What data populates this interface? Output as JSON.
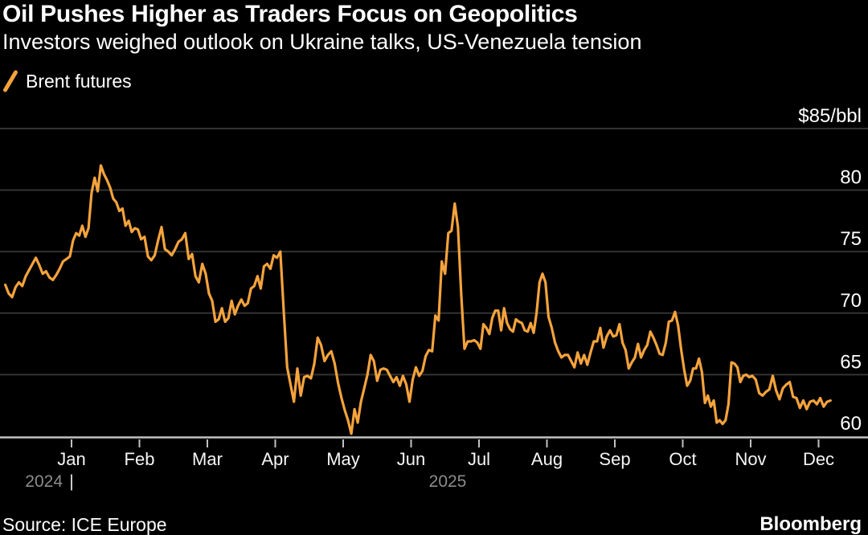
{
  "header": {
    "title": "Oil Pushes Higher as Traders Focus on Geopolitics",
    "subtitle": "Investors weighed outlook on Ukraine talks, US-Venezuela tension"
  },
  "legend": {
    "items": [
      {
        "label": "Brent futures",
        "swatch_icon": "orange-slash-icon",
        "color": "#F5A33C"
      }
    ]
  },
  "footer": {
    "source": "Source: ICE Europe",
    "brand": "Bloomberg"
  },
  "colors": {
    "background": "#000000",
    "line": "#F5A33C",
    "gridline": "#333333",
    "axis": "#C2C2C2",
    "tick_label": "#F5F5F5",
    "y_label": "#FFFFFF",
    "year_label": "#8C8C8C",
    "year_divider": "#E8E8E8"
  },
  "chart_data": {
    "type": "line",
    "title": "Oil Pushes Higher as Traders Focus on Geopolitics",
    "subtitle": "Investors weighed outlook on Ukraine talks, US-Venezuela tension",
    "xlabel": "",
    "ylabel": "$/bbl",
    "unit_label_top": "$85/bbl",
    "ylim": [
      60,
      85
    ],
    "yticks": [
      60,
      65,
      70,
      75,
      80,
      85
    ],
    "ytick_labels": [
      "60",
      "65",
      "70",
      "75",
      "80",
      "$85/bbl"
    ],
    "x_tick_labels": [
      "Jan",
      "Feb",
      "Mar",
      "Apr",
      "May",
      "Jun",
      "Jul",
      "Aug",
      "Sep",
      "Oct",
      "Nov",
      "Dec"
    ],
    "year_markers": {
      "left": "2024",
      "divider": "|",
      "center": "2025"
    },
    "grid": "horizontal-only",
    "legend_position": "top-left",
    "series": [
      {
        "name": "Brent futures",
        "color": "#F5A33C",
        "months": [
          {
            "label": "Dec 2024",
            "values": [
              72.3,
              71.6,
              71.3,
              72.1,
              72.5,
              72.2,
              73.0,
              73.5,
              74.0,
              74.5,
              73.9,
              73.2,
              73.4,
              72.9,
              72.7,
              73.1,
              73.6,
              74.2,
              74.4,
              74.6
            ]
          },
          {
            "label": "Jan 2025",
            "values": [
              75.9,
              76.5,
              76.3,
              77.1,
              76.2,
              76.9,
              79.8,
              81.0,
              79.9,
              82.0,
              81.3,
              80.8,
              80.2,
              79.3,
              79.0,
              78.3,
              78.5,
              77.1,
              77.5,
              76.6,
              76.9,
              76.8
            ]
          },
          {
            "label": "Feb 2025",
            "values": [
              76.0,
              76.2,
              74.6,
              74.3,
              74.7,
              75.9,
              77.0,
              75.2,
              75.0,
              74.7,
              75.2,
              75.8,
              76.0,
              76.5,
              74.4,
              74.8,
              73.0,
              72.5,
              74.0,
              73.2
            ]
          },
          {
            "label": "Mar 2025",
            "values": [
              71.6,
              71.0,
              69.3,
              69.5,
              70.4,
              69.3,
              69.6,
              71.0,
              69.9,
              70.6,
              71.1,
              70.6,
              70.8,
              72.0,
              72.2,
              73.0,
              72.0,
              73.8,
              74.0,
              73.6,
              74.7
            ]
          },
          {
            "label": "Apr 2025",
            "values": [
              74.5,
              75.0,
              70.1,
              65.6,
              64.2,
              62.8,
              65.5,
              63.3,
              64.8,
              64.9,
              64.7,
              65.9,
              68.0,
              67.4,
              66.1,
              66.6,
              66.9,
              65.9,
              64.3,
              63.1
            ]
          },
          {
            "label": "May 2025",
            "values": [
              62.1,
              61.3,
              60.2,
              62.2,
              61.1,
              62.8,
              63.9,
              65.0,
              66.6,
              66.1,
              64.5,
              65.4,
              65.5,
              65.4,
              64.9,
              64.4,
              64.8,
              64.1,
              64.9,
              64.2,
              62.8
            ]
          },
          {
            "label": "Jun 2025",
            "values": [
              64.6,
              65.6,
              64.9,
              65.3,
              66.5,
              67.0,
              66.9,
              69.8,
              69.4,
              74.2,
              73.2,
              76.5,
              76.7,
              78.9,
              77.0,
              71.5,
              67.1,
              67.7,
              67.7,
              67.8,
              67.6
            ]
          },
          {
            "label": "Jul 2025",
            "values": [
              67.1,
              69.1,
              68.8,
              68.3,
              69.6,
              70.2,
              70.2,
              68.6,
              70.4,
              69.2,
              68.7,
              68.5,
              69.5,
              69.3,
              69.2,
              68.6,
              68.5,
              69.2,
              68.4,
              70.0,
              72.5,
              73.2,
              72.5
            ]
          },
          {
            "label": "Aug 2025",
            "values": [
              69.7,
              68.8,
              67.6,
              66.9,
              66.4,
              66.6,
              66.6,
              66.1,
              65.6,
              66.8,
              65.9,
              66.6,
              65.8,
              66.8,
              67.7,
              67.7,
              68.8,
              67.2,
              68.1,
              68.6,
              68.1
            ]
          },
          {
            "label": "Sep 2025",
            "values": [
              68.2,
              69.1,
              67.6,
              67.0,
              65.5,
              66.0,
              66.4,
              67.5,
              66.4,
              67.0,
              67.4,
              68.5,
              68.0,
              67.4,
              66.7,
              66.6,
              67.6,
              69.3,
              69.4,
              70.1,
              69.0,
              67.0
            ]
          },
          {
            "label": "Oct 2025",
            "values": [
              65.4,
              64.1,
              64.5,
              65.5,
              65.5,
              66.3,
              65.2,
              62.7,
              63.3,
              62.4,
              62.9,
              61.1,
              61.3,
              61.0,
              61.3,
              62.6,
              66.0,
              65.9,
              65.6,
              64.4,
              64.9,
              65.0,
              64.8
            ]
          },
          {
            "label": "Nov 2025",
            "values": [
              64.9,
              64.6,
              63.5,
              63.3,
              63.6,
              63.8,
              64.9,
              63.7,
              63.0,
              63.9,
              64.2,
              64.4,
              63.2,
              63.1,
              62.3,
              62.9,
              62.2,
              62.8,
              62.9,
              62.6
            ]
          },
          {
            "label": "Dec 2025",
            "values": [
              63.1,
              62.4,
              62.8,
              62.9
            ],
            "span": 0.2
          }
        ]
      }
    ],
    "source": "Source: ICE Europe",
    "brand": "Bloomberg"
  }
}
